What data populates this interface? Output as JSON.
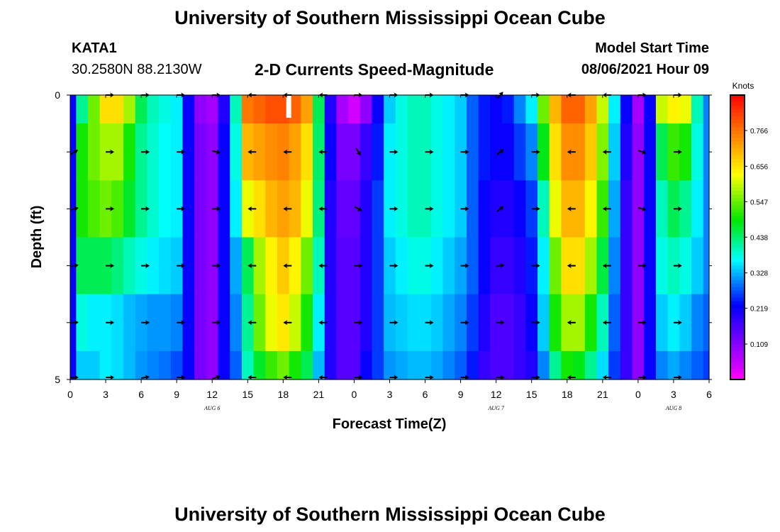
{
  "header": {
    "title": "University of Southern Mississippi Ocean Cube",
    "station_id": "KATA1",
    "station_coords": "30.2580N  88.2130W",
    "model_start_label": "Model Start Time",
    "model_start_value": "08/06/2021 Hour 09"
  },
  "footer": {
    "title": "University of Southern Mississippi Ocean Cube"
  },
  "colors": {
    "arrow": "#000000",
    "missing": "#ffffff"
  },
  "chart_data": {
    "type": "heatmap",
    "title": "2-D Currents Speed-Magnitude",
    "xlabel": "Forecast Time(Z)",
    "ylabel": "Depth (ft)",
    "units_label": "Knots",
    "ylim": [
      0,
      5
    ],
    "y_ticks": [
      "0",
      "5"
    ],
    "depth_bands": 5,
    "x_ticks": [
      "0",
      "3",
      "6",
      "9",
      "12",
      "15",
      "18",
      "21",
      "0",
      "3",
      "6",
      "9",
      "12",
      "15",
      "18",
      "21",
      "0",
      "3",
      "6"
    ],
    "date_labels": [
      {
        "text": "AUG 6",
        "hour": 12
      },
      {
        "text": "AUG 7",
        "hour": 36
      },
      {
        "text": "AUG 8",
        "hour": 51
      }
    ],
    "colorbar": {
      "min": 0,
      "max": 0.875,
      "ticks": [
        "0.766",
        "0.656",
        "0.547",
        "0.438",
        "0.328",
        "0.219",
        "0.109"
      ],
      "tick_values": [
        0.766,
        0.656,
        0.547,
        0.438,
        0.328,
        0.219,
        0.109
      ]
    },
    "missing_cell": {
      "hour": 18.5,
      "depth": 0.1
    },
    "columns": [
      {
        "hour": 0,
        "speeds": [
          0.22,
          0.22,
          0.22,
          0.22,
          0.22,
          0.22
        ],
        "dirs": [
          null,
          30,
          15,
          10,
          5,
          0
        ]
      },
      {
        "hour": 1,
        "speeds": [
          0.42,
          0.5,
          0.5,
          0.45,
          0.38,
          0.34
        ],
        "dirs": [
          null,
          null,
          null,
          null,
          null,
          null
        ]
      },
      {
        "hour": 2,
        "speeds": [
          0.55,
          0.55,
          0.53,
          0.45,
          0.36,
          0.34
        ],
        "dirs": [
          null,
          null,
          null,
          null,
          null,
          null
        ]
      },
      {
        "hour": 3,
        "speeds": [
          0.66,
          0.58,
          0.55,
          0.45,
          0.36,
          0.36
        ],
        "dirs": [
          0,
          0,
          0,
          0,
          0,
          0
        ]
      },
      {
        "hour": 4,
        "speeds": [
          0.66,
          0.58,
          0.53,
          0.43,
          0.35,
          0.35
        ],
        "dirs": [
          null,
          null,
          null,
          null,
          null,
          null
        ]
      },
      {
        "hour": 5,
        "speeds": [
          0.58,
          0.5,
          0.47,
          0.4,
          0.33,
          0.33
        ],
        "dirs": [
          null,
          null,
          null,
          null,
          null,
          null
        ]
      },
      {
        "hour": 6,
        "speeds": [
          0.45,
          0.42,
          0.42,
          0.38,
          0.32,
          0.31
        ],
        "dirs": [
          0,
          0,
          0,
          0,
          0,
          10
        ]
      },
      {
        "hour": 7,
        "speeds": [
          0.4,
          0.39,
          0.39,
          0.36,
          0.31,
          0.3
        ],
        "dirs": [
          null,
          null,
          null,
          null,
          null,
          null
        ]
      },
      {
        "hour": 8,
        "speeds": [
          0.38,
          0.37,
          0.37,
          0.35,
          0.31,
          0.29
        ],
        "dirs": [
          null,
          null,
          null,
          null,
          null,
          null
        ]
      },
      {
        "hour": 9,
        "speeds": [
          0.36,
          0.36,
          0.36,
          0.34,
          0.3,
          0.27
        ],
        "dirs": [
          0,
          0,
          0,
          0,
          0,
          0
        ]
      },
      {
        "hour": 10,
        "speeds": [
          0.22,
          0.22,
          0.22,
          0.22,
          0.22,
          0.22
        ],
        "dirs": [
          null,
          null,
          null,
          null,
          null,
          null
        ]
      },
      {
        "hour": 11,
        "speeds": [
          0.1,
          0.12,
          0.12,
          0.12,
          0.12,
          0.12
        ],
        "dirs": [
          null,
          null,
          null,
          null,
          null,
          null
        ]
      },
      {
        "hour": 12,
        "speeds": [
          0.08,
          0.1,
          0.1,
          0.1,
          0.1,
          0.1
        ],
        "dirs": [
          0,
          -15,
          0,
          0,
          0,
          20
        ]
      },
      {
        "hour": 13,
        "speeds": [
          0.2,
          0.22,
          0.22,
          0.22,
          0.22,
          0.22
        ],
        "dirs": [
          null,
          null,
          null,
          null,
          null,
          null
        ]
      },
      {
        "hour": 14,
        "speeds": [
          0.4,
          0.38,
          0.36,
          0.32,
          0.3,
          0.28
        ],
        "dirs": [
          null,
          null,
          null,
          null,
          null,
          null
        ]
      },
      {
        "hour": 15,
        "speeds": [
          0.76,
          0.7,
          0.62,
          0.45,
          0.42,
          0.4
        ],
        "dirs": [
          180,
          180,
          180,
          180,
          180,
          180
        ]
      },
      {
        "hour": 16,
        "speeds": [
          0.78,
          0.72,
          0.66,
          0.58,
          0.55,
          0.47
        ],
        "dirs": [
          null,
          null,
          null,
          null,
          null,
          null
        ]
      },
      {
        "hour": 17,
        "speeds": [
          0.8,
          0.74,
          0.7,
          0.64,
          0.62,
          0.52
        ],
        "dirs": [
          null,
          null,
          null,
          null,
          null,
          null
        ]
      },
      {
        "hour": 18,
        "speeds": [
          0.8,
          0.75,
          0.72,
          0.68,
          0.65,
          0.55
        ],
        "dirs": [
          180,
          180,
          180,
          180,
          180,
          180
        ]
      },
      {
        "hour": 19,
        "speeds": [
          0.78,
          0.72,
          0.7,
          0.64,
          0.6,
          0.5
        ],
        "dirs": [
          null,
          null,
          null,
          null,
          null,
          null
        ]
      },
      {
        "hour": 20,
        "speeds": [
          0.72,
          0.66,
          0.62,
          0.55,
          0.5,
          0.45
        ],
        "dirs": [
          null,
          null,
          null,
          null,
          null,
          null
        ]
      },
      {
        "hour": 21,
        "speeds": [
          0.45,
          0.44,
          0.43,
          0.4,
          0.36,
          0.33
        ],
        "dirs": [
          180,
          180,
          180,
          180,
          180,
          180
        ]
      },
      {
        "hour": 22,
        "speeds": [
          0.2,
          0.22,
          0.2,
          0.2,
          0.2,
          0.2
        ],
        "dirs": [
          null,
          null,
          null,
          null,
          null,
          null
        ]
      },
      {
        "hour": 23,
        "speeds": [
          0.08,
          0.12,
          0.14,
          0.15,
          0.15,
          0.15
        ],
        "dirs": [
          null,
          null,
          null,
          null,
          null,
          null
        ]
      },
      {
        "hour": 24,
        "speeds": [
          0.04,
          0.12,
          0.14,
          0.15,
          0.15,
          0.15
        ],
        "dirs": [
          0,
          -60,
          -30,
          0,
          0,
          0
        ]
      },
      {
        "hour": 25,
        "speeds": [
          0.1,
          0.18,
          0.2,
          0.2,
          0.2,
          0.22
        ],
        "dirs": [
          null,
          null,
          null,
          null,
          null,
          null
        ]
      },
      {
        "hour": 26,
        "speeds": [
          0.22,
          0.24,
          0.26,
          0.26,
          0.26,
          0.26
        ],
        "dirs": [
          null,
          null,
          null,
          null,
          null,
          null
        ]
      },
      {
        "hour": 27,
        "speeds": [
          0.34,
          0.36,
          0.36,
          0.34,
          0.33,
          0.31
        ],
        "dirs": [
          0,
          0,
          0,
          0,
          0,
          0
        ]
      },
      {
        "hour": 28,
        "speeds": [
          0.38,
          0.38,
          0.38,
          0.36,
          0.34,
          0.32
        ],
        "dirs": [
          null,
          null,
          null,
          null,
          null,
          null
        ]
      },
      {
        "hour": 29,
        "speeds": [
          0.4,
          0.4,
          0.4,
          0.38,
          0.35,
          0.33
        ],
        "dirs": [
          null,
          null,
          null,
          null,
          null,
          null
        ]
      },
      {
        "hour": 30,
        "speeds": [
          0.4,
          0.4,
          0.4,
          0.38,
          0.35,
          0.33
        ],
        "dirs": [
          0,
          0,
          0,
          0,
          0,
          0
        ]
      },
      {
        "hour": 31,
        "speeds": [
          0.38,
          0.38,
          0.38,
          0.36,
          0.34,
          0.32
        ],
        "dirs": [
          null,
          null,
          null,
          null,
          null,
          null
        ]
      },
      {
        "hour": 32,
        "speeds": [
          0.36,
          0.36,
          0.36,
          0.34,
          0.32,
          0.3
        ],
        "dirs": [
          null,
          null,
          null,
          null,
          null,
          null
        ]
      },
      {
        "hour": 33,
        "speeds": [
          0.34,
          0.34,
          0.34,
          0.32,
          0.3,
          0.28
        ],
        "dirs": [
          0,
          0,
          0,
          0,
          0,
          0
        ]
      },
      {
        "hour": 34,
        "speeds": [
          0.28,
          0.28,
          0.28,
          0.28,
          0.26,
          0.24
        ],
        "dirs": [
          null,
          null,
          null,
          null,
          null,
          null
        ]
      },
      {
        "hour": 35,
        "speeds": [
          0.24,
          0.24,
          0.22,
          0.22,
          0.2,
          0.18
        ],
        "dirs": [
          null,
          null,
          null,
          null,
          null,
          null
        ]
      },
      {
        "hour": 36,
        "speeds": [
          0.22,
          0.22,
          0.2,
          0.18,
          0.16,
          0.16
        ],
        "dirs": [
          50,
          40,
          40,
          10,
          0,
          0
        ]
      },
      {
        "hour": 37,
        "speeds": [
          0.24,
          0.22,
          0.2,
          0.18,
          0.16,
          0.16
        ],
        "dirs": [
          null,
          null,
          null,
          null,
          null,
          null
        ]
      },
      {
        "hour": 38,
        "speeds": [
          0.3,
          0.26,
          0.22,
          0.2,
          0.18,
          0.18
        ],
        "dirs": [
          null,
          null,
          null,
          null,
          null,
          null
        ]
      },
      {
        "hour": 39,
        "speeds": [
          0.36,
          0.3,
          0.26,
          0.24,
          0.22,
          0.2
        ],
        "dirs": [
          0,
          0,
          0,
          0,
          0,
          0
        ]
      },
      {
        "hour": 40,
        "speeds": [
          0.55,
          0.48,
          0.4,
          0.36,
          0.34,
          0.3
        ],
        "dirs": [
          null,
          null,
          null,
          null,
          null,
          null
        ]
      },
      {
        "hour": 41,
        "speeds": [
          0.7,
          0.66,
          0.62,
          0.55,
          0.5,
          0.42
        ],
        "dirs": [
          null,
          null,
          null,
          null,
          null,
          null
        ]
      },
      {
        "hour": 42,
        "speeds": [
          0.78,
          0.74,
          0.7,
          0.66,
          0.58,
          0.5
        ],
        "dirs": [
          180,
          180,
          180,
          180,
          180,
          180
        ]
      },
      {
        "hour": 43,
        "speeds": [
          0.78,
          0.74,
          0.7,
          0.66,
          0.58,
          0.48
        ],
        "dirs": [
          null,
          null,
          null,
          null,
          null,
          null
        ]
      },
      {
        "hour": 44,
        "speeds": [
          0.72,
          0.68,
          0.64,
          0.58,
          0.5,
          0.42
        ],
        "dirs": [
          null,
          null,
          null,
          null,
          null,
          null
        ]
      },
      {
        "hour": 45,
        "speeds": [
          0.6,
          0.56,
          0.52,
          0.46,
          0.4,
          0.35
        ],
        "dirs": [
          180,
          180,
          180,
          180,
          180,
          180
        ]
      },
      {
        "hour": 46,
        "speeds": [
          0.36,
          0.34,
          0.32,
          0.3,
          0.28,
          0.26
        ],
        "dirs": [
          null,
          null,
          null,
          null,
          null,
          null
        ]
      },
      {
        "hour": 47,
        "speeds": [
          0.22,
          0.2,
          0.18,
          0.18,
          0.18,
          0.18
        ],
        "dirs": [
          null,
          null,
          null,
          null,
          null,
          null
        ]
      },
      {
        "hour": 48,
        "speeds": [
          0.08,
          0.1,
          0.1,
          0.1,
          0.1,
          0.1
        ],
        "dirs": [
          0,
          -20,
          -15,
          0,
          0,
          0
        ]
      },
      {
        "hour": 49,
        "speeds": [
          0.22,
          0.22,
          0.22,
          0.22,
          0.22,
          0.22
        ],
        "dirs": [
          null,
          null,
          null,
          null,
          null,
          null
        ]
      },
      {
        "hour": 50,
        "speeds": [
          0.6,
          0.45,
          0.4,
          0.38,
          0.34,
          0.3
        ],
        "dirs": [
          null,
          null,
          null,
          null,
          null,
          null
        ]
      },
      {
        "hour": 51,
        "speeds": [
          0.64,
          0.52,
          0.45,
          0.4,
          0.36,
          0.32
        ],
        "dirs": [
          0,
          0,
          0,
          0,
          0,
          0
        ]
      },
      {
        "hour": 52,
        "speeds": [
          0.62,
          0.5,
          0.42,
          0.38,
          0.34,
          0.3
        ],
        "dirs": [
          null,
          null,
          null,
          null,
          null,
          null
        ]
      },
      {
        "hour": 53,
        "speeds": [
          0.4,
          0.38,
          0.36,
          0.34,
          0.3,
          0.28
        ],
        "dirs": [
          null,
          null,
          null,
          null,
          null,
          null
        ]
      },
      {
        "hour": 54,
        "speeds": [
          0.3,
          0.3,
          0.3,
          0.3,
          0.28,
          0.26
        ],
        "dirs": [
          null,
          null,
          null,
          null,
          null,
          null
        ]
      }
    ]
  }
}
